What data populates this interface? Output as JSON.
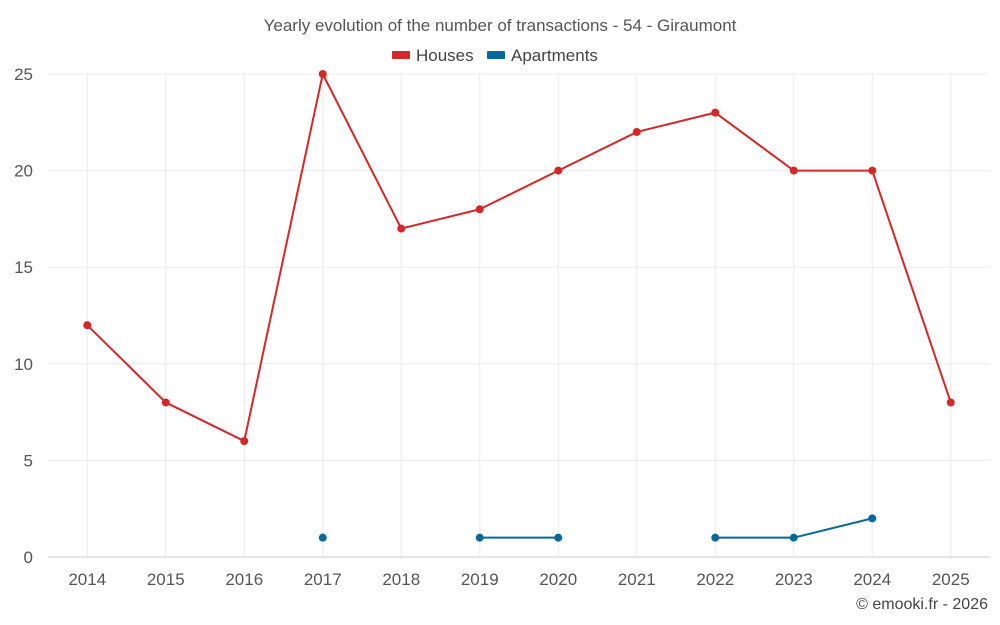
{
  "chart_data": {
    "type": "line",
    "title": "Yearly evolution of the number of transactions - 54 - Giraumont",
    "categories": [
      "2014",
      "2015",
      "2016",
      "2017",
      "2018",
      "2019",
      "2020",
      "2021",
      "2022",
      "2023",
      "2024",
      "2025"
    ],
    "series": [
      {
        "name": "Houses",
        "color": "#d62728",
        "values": [
          12,
          8,
          6,
          25,
          17,
          18,
          20,
          22,
          23,
          20,
          20,
          8
        ]
      },
      {
        "name": "Apartments",
        "color": "#08689a",
        "values": [
          null,
          null,
          null,
          1,
          null,
          1,
          1,
          null,
          1,
          1,
          2,
          null
        ]
      }
    ],
    "ylim": [
      0,
      25
    ],
    "yticks": [
      0,
      5,
      10,
      15,
      20,
      25
    ],
    "xlabel": "",
    "ylabel": "",
    "grid": true,
    "legend": "top-center"
  },
  "credit": "© emooki.fr - 2026"
}
